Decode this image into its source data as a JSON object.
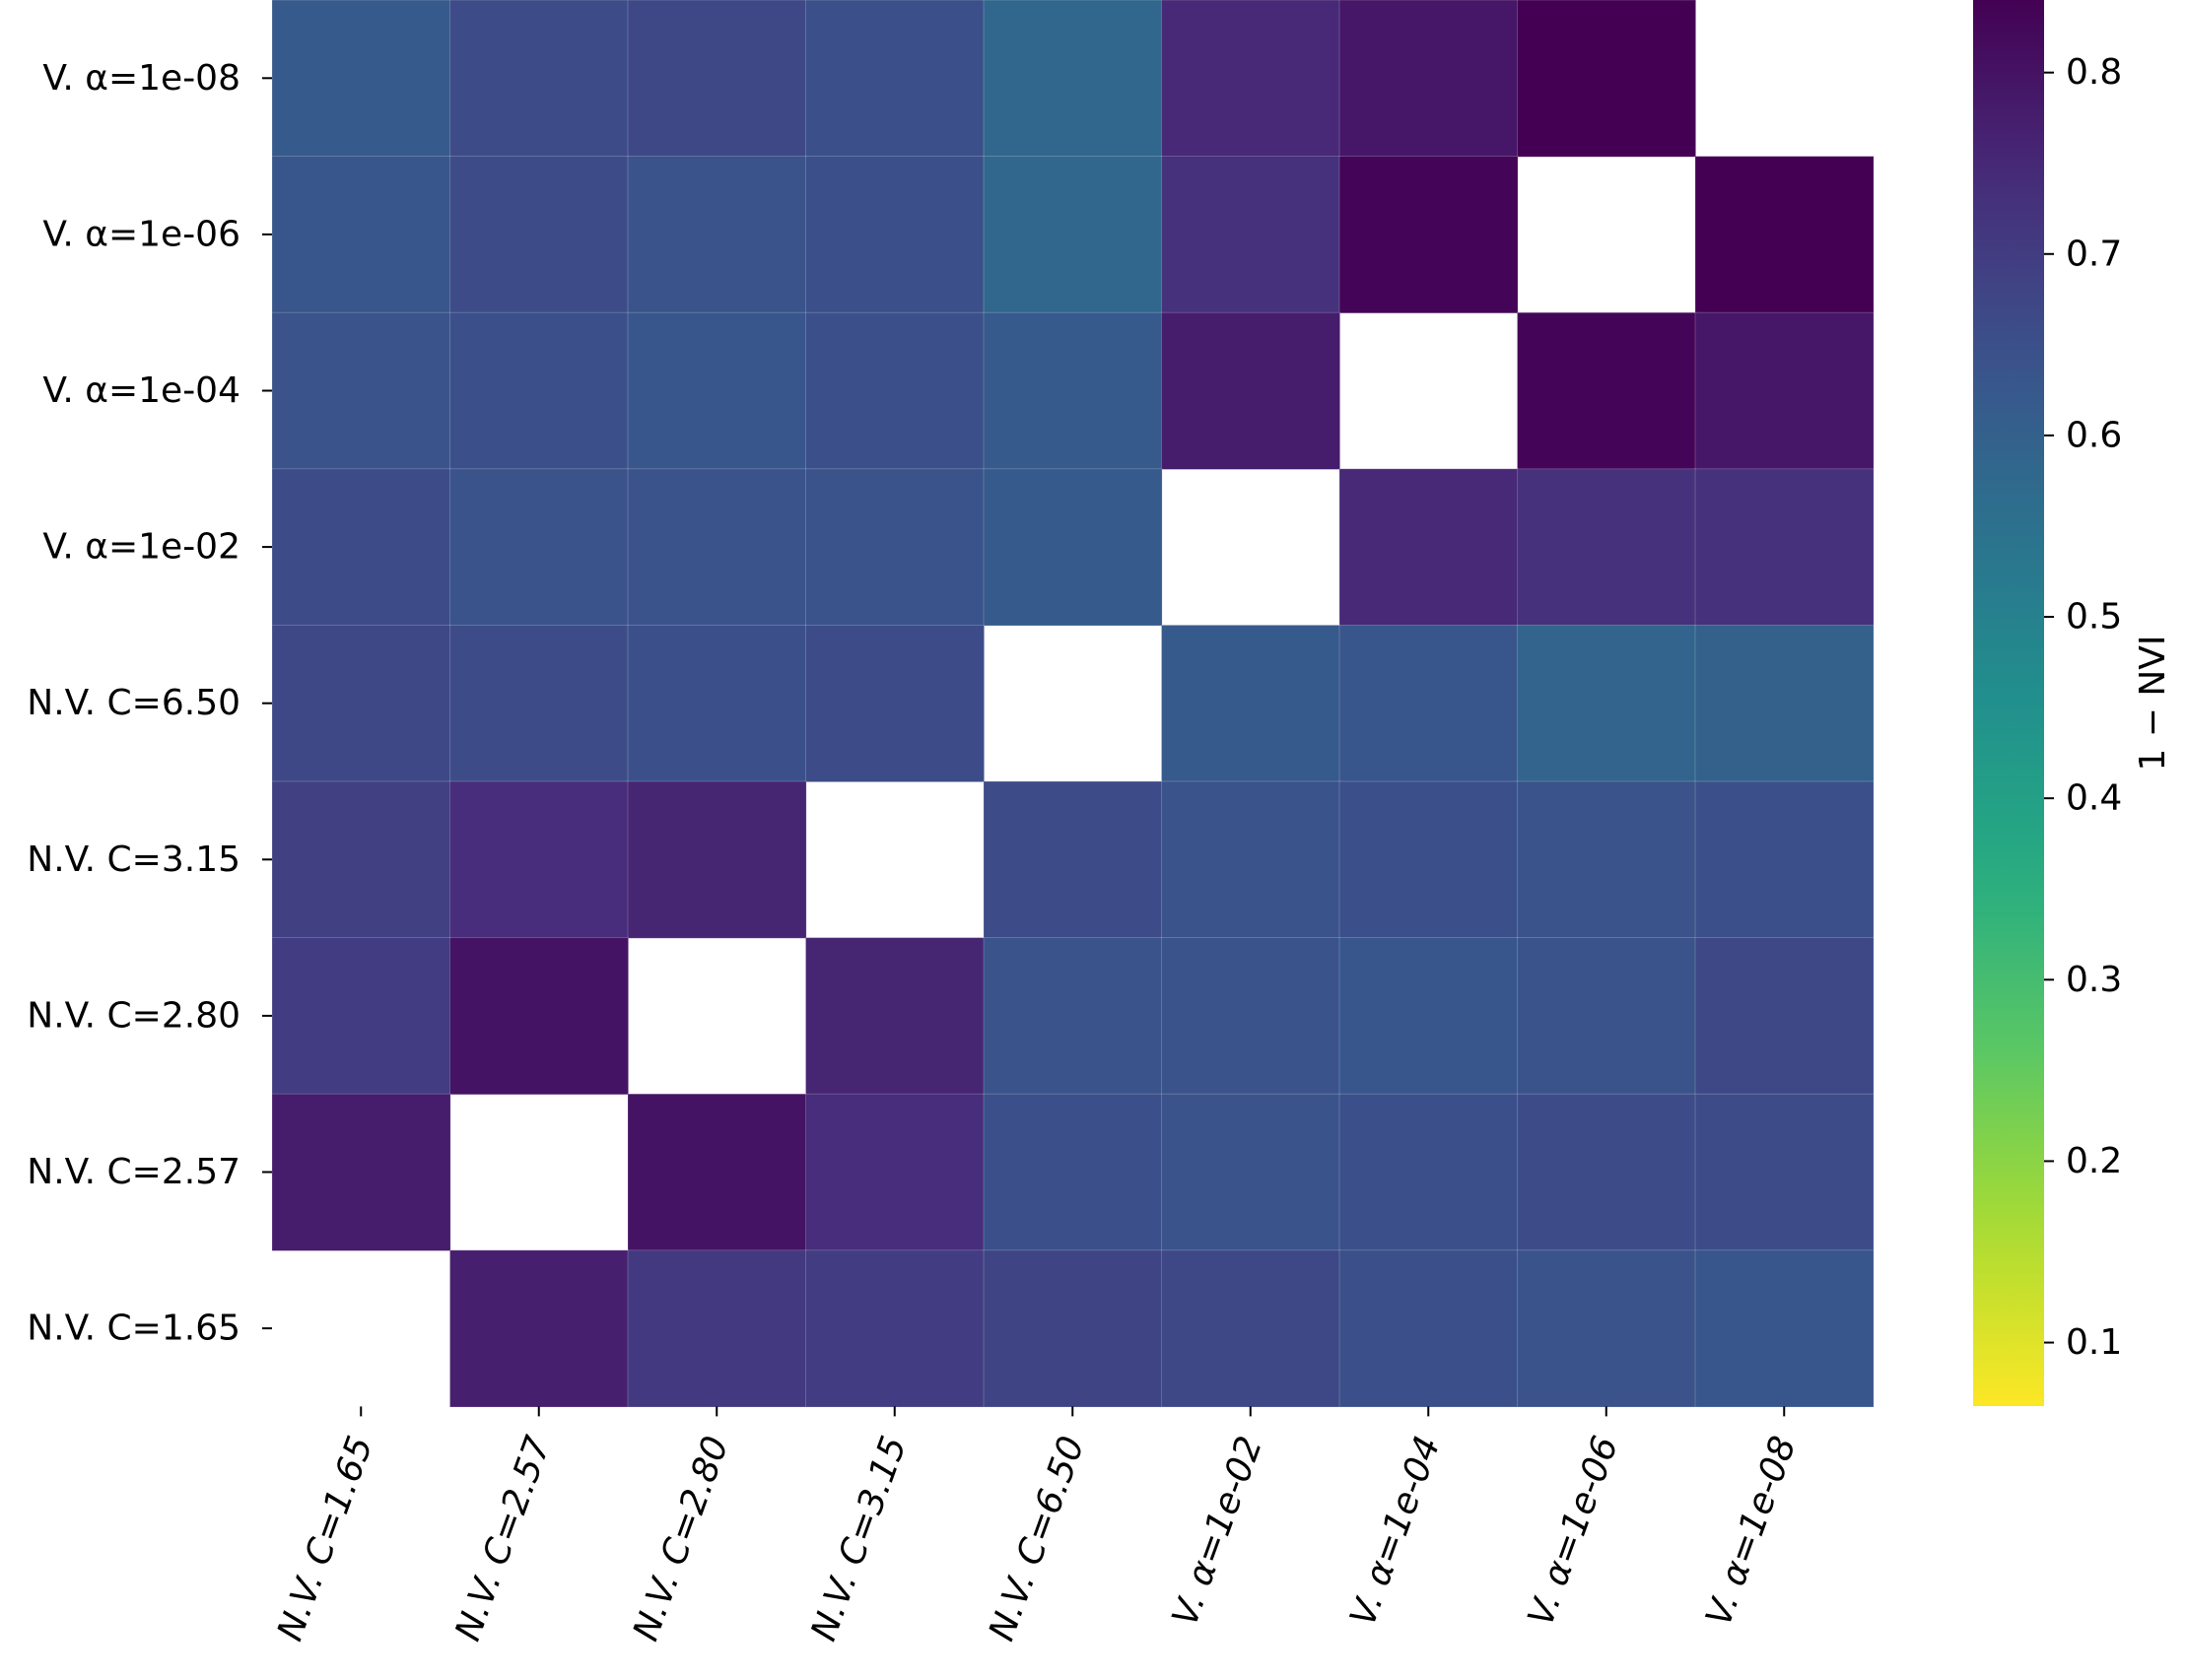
{
  "chart_data": {
    "type": "heatmap",
    "rows": [
      "V. α=1e-08",
      "V. α=1e-06",
      "V. α=1e-04",
      "V. α=1e-02",
      "N.V. C=6.50",
      "N.V. C=3.15",
      "N.V. C=2.80",
      "N.V. C=2.57",
      "N.V. C=1.65"
    ],
    "columns": [
      "N.V. C=1.65",
      "N.V. C=2.57",
      "N.V. C=2.80",
      "N.V. C=3.15",
      "N.V. C=6.50",
      "V. α=1e-02",
      "V. α=1e-04",
      "V. α=1e-06",
      "V. α=1e-08"
    ],
    "values": [
      [
        0.62,
        0.66,
        0.67,
        0.65,
        0.58,
        0.75,
        0.79,
        0.84,
        null
      ],
      [
        0.63,
        0.66,
        0.64,
        0.65,
        0.58,
        0.73,
        0.83,
        null,
        0.84
      ],
      [
        0.64,
        0.65,
        0.63,
        0.65,
        0.62,
        0.78,
        null,
        0.83,
        0.79
      ],
      [
        0.66,
        0.64,
        0.64,
        0.64,
        0.62,
        null,
        0.75,
        0.73,
        0.73
      ],
      [
        0.67,
        0.66,
        0.65,
        0.66,
        null,
        0.62,
        0.63,
        0.59,
        0.6
      ],
      [
        0.69,
        0.74,
        0.76,
        null,
        0.66,
        0.64,
        0.65,
        0.64,
        0.65
      ],
      [
        0.7,
        0.8,
        null,
        0.76,
        0.64,
        0.64,
        0.63,
        0.64,
        0.67
      ],
      [
        0.78,
        null,
        0.8,
        0.74,
        0.65,
        0.64,
        0.65,
        0.66,
        0.66
      ],
      [
        null,
        0.77,
        0.71,
        0.7,
        0.68,
        0.67,
        0.65,
        0.64,
        0.63
      ]
    ],
    "colorbar": {
      "label": "1 − NVI",
      "range": [
        0.065,
        0.84
      ],
      "ticks": [
        0.1,
        0.2,
        0.3,
        0.4,
        0.5,
        0.6,
        0.7,
        0.8
      ],
      "tick_labels": [
        "0.1",
        "0.2",
        "0.3",
        "0.4",
        "0.5",
        "0.6",
        "0.7",
        "0.8"
      ],
      "colormap": "viridis_r"
    },
    "title": "",
    "xlabel": "",
    "ylabel": ""
  }
}
